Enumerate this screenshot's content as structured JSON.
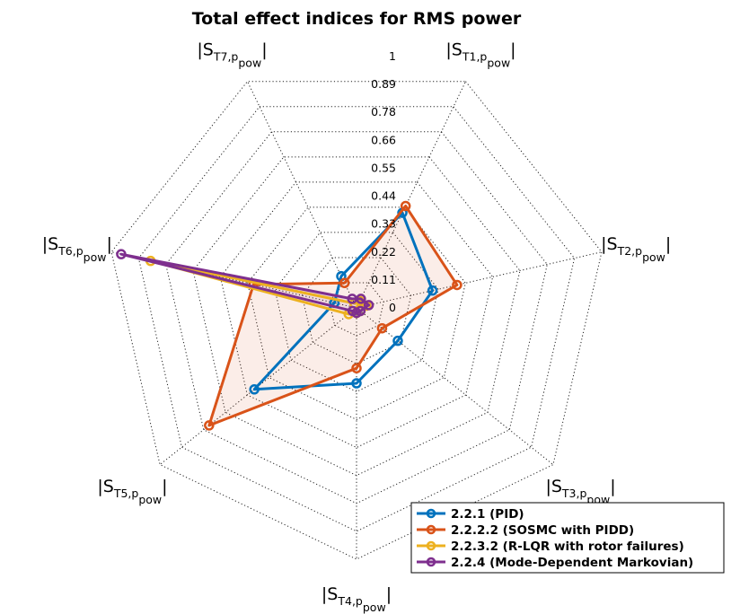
{
  "chart_data": {
    "type": "radar",
    "title": "Total effect indices for RMS power",
    "axes": [
      {
        "main": "|S",
        "sub": "T1,p",
        "subsub": "pow",
        "close": "|"
      },
      {
        "main": "|S",
        "sub": "T2,p",
        "subsub": "pow",
        "close": "|"
      },
      {
        "main": "|S",
        "sub": "T3,p",
        "subsub": "pow",
        "close": "|"
      },
      {
        "main": "|S",
        "sub": "T4,p",
        "subsub": "pow",
        "close": "|"
      },
      {
        "main": "|S",
        "sub": "T5,p",
        "subsub": "pow",
        "close": "|"
      },
      {
        "main": "|S",
        "sub": "T6,p",
        "subsub": "pow",
        "close": "|"
      },
      {
        "main": "|S",
        "sub": "T7,p",
        "subsub": "pow",
        "close": "|"
      }
    ],
    "rlim": [
      0,
      1
    ],
    "ticks": [
      "0",
      "0.11",
      "0.22",
      "0.33",
      "0.44",
      "0.55",
      "0.66",
      "0.78",
      "0.89",
      "1"
    ],
    "series": [
      {
        "name": "2.2.1 (PID)",
        "color": "#0072BD",
        "values": [
          0.42,
          0.31,
          0.21,
          0.3,
          0.52,
          0.09,
          0.14
        ],
        "fill": false
      },
      {
        "name": "2.2.2.2 (SOSMC with PIDD)",
        "color": "#D95319",
        "values": [
          0.45,
          0.41,
          0.13,
          0.24,
          0.75,
          0.42,
          0.11
        ],
        "fill": true
      },
      {
        "name": "2.2.3.2 (R-LQR with rotor failures)",
        "color": "#EDB120",
        "values": [
          0.03,
          0.04,
          0.02,
          0.02,
          0.04,
          0.84,
          0.02
        ],
        "fill": false
      },
      {
        "name": "2.2.4 (Mode-Dependent Markovian)",
        "color": "#7E2F8E",
        "values": [
          0.04,
          0.05,
          0.02,
          0.02,
          0.02,
          0.96,
          0.04
        ],
        "fill": true
      }
    ],
    "legend_position": "bottom-right",
    "grid": true
  }
}
